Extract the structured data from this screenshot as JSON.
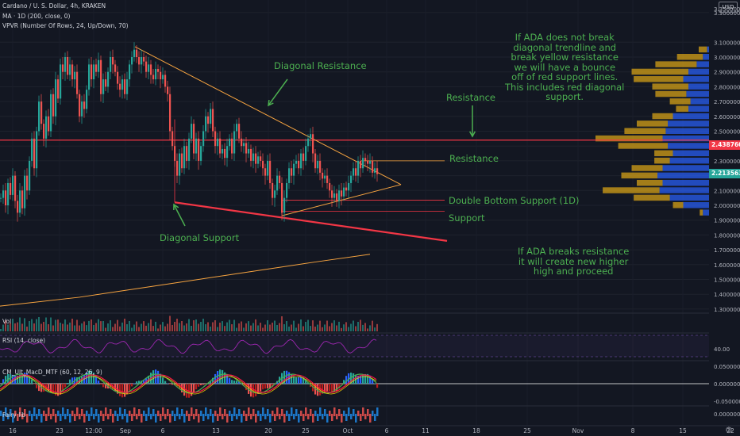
{
  "header": {
    "line1": "Cardano / U. S. Dollar, 4h, KRAKEN",
    "line2": "MA · 1D (200, close, 0)",
    "line3": "VPVR (Number Of Rows, 24, Up/Down, 70)",
    "currency": "USD"
  },
  "panes": {
    "vol_label": "Vol",
    "rsi_label": "RSI (14, close)",
    "rsi_value": "40.00",
    "macd_label": "CM_Ult_MacD_MTF (60, 12, 26, 9)",
    "pane4_label": "Fairy lib"
  },
  "annotations": {
    "diag_resistance": "Diagonal Resistance",
    "diag_support": "Diagonal Support",
    "resistance_top": "Resistance",
    "resistance": "Resistance",
    "double_bottom": "Double Bottom Support (1D)",
    "support": "Support",
    "note1": [
      "If ADA does not break",
      "diagonal trendline and",
      "break yellow resistance",
      "we will have a bounce",
      "off of red support lines.",
      "This includes red diagonal",
      "support."
    ],
    "note2": [
      "If ADA breaks resistance",
      "it will create new higher",
      "high and proceed"
    ]
  },
  "colors": {
    "background": "#131722",
    "bull": "#26a69a",
    "bear": "#ef5350",
    "red_line": "#f23645",
    "orange_line": "#f7a440",
    "annotation": "#4caf50",
    "vpvr_up": "#2962ff",
    "vpvr_down": "#d4a017"
  },
  "chart_data": {
    "type": "candlestick",
    "symbol": "ADA/USD",
    "timeframe": "4h",
    "ylim": [
      1.2,
      3.4
    ],
    "price_axis": [
      "3.350000",
      "3.300000",
      "3.100000",
      "3.000000",
      "2.900000",
      "2.800000",
      "2.700000",
      "2.600000",
      "2.500000",
      "2.400000",
      "2.300000",
      "2.200000",
      "2.100000",
      "2.000000",
      "1.900000",
      "1.800000",
      "1.700000",
      "1.600000",
      "1.500000",
      "1.400000",
      "1.300000"
    ],
    "last_price": "2.213563",
    "resistance_level": "2.438760",
    "x_ticks": [
      "16",
      "23",
      "12:00",
      "Sep",
      "6",
      "13",
      "20",
      "25",
      "Oct",
      "6",
      "11",
      "18",
      "25",
      "Nov",
      "8",
      "15",
      "22"
    ],
    "rsi_axis": "40.00",
    "macd_axis": [
      "0.050000",
      "0.000000",
      "-0.050000"
    ],
    "pane4_axis": "0.000000",
    "close_path": [
      [
        0,
        2.05
      ],
      [
        3,
        2.1
      ],
      [
        6,
        2.0
      ],
      [
        9,
        2.15
      ],
      [
        12,
        2.07
      ],
      [
        15,
        2.2
      ],
      [
        18,
        2.03
      ],
      [
        21,
        1.95
      ],
      [
        24,
        2.1
      ],
      [
        27,
        1.98
      ],
      [
        30,
        2.2
      ],
      [
        33,
        2.1
      ],
      [
        36,
        2.3
      ],
      [
        39,
        2.45
      ],
      [
        42,
        2.25
      ],
      [
        45,
        2.5
      ],
      [
        48,
        2.7
      ],
      [
        51,
        2.55
      ],
      [
        54,
        2.45
      ],
      [
        57,
        2.6
      ],
      [
        60,
        2.5
      ],
      [
        63,
        2.75
      ],
      [
        66,
        2.6
      ],
      [
        69,
        2.85
      ],
      [
        72,
        2.72
      ],
      [
        75,
        2.95
      ],
      [
        78,
        2.9
      ],
      [
        81,
        3.0
      ],
      [
        84,
        2.88
      ],
      [
        87,
        2.95
      ],
      [
        90,
        2.85
      ],
      [
        93,
        2.9
      ],
      [
        96,
        2.75
      ],
      [
        99,
        2.6
      ],
      [
        102,
        2.7
      ],
      [
        105,
        2.65
      ],
      [
        108,
        2.78
      ],
      [
        111,
        2.95
      ],
      [
        114,
        2.85
      ],
      [
        117,
        2.95
      ],
      [
        120,
        2.9
      ],
      [
        123,
        2.98
      ],
      [
        126,
        2.75
      ],
      [
        129,
        2.85
      ],
      [
        132,
        2.8
      ],
      [
        135,
        2.9
      ],
      [
        138,
        3.0
      ],
      [
        141,
        2.95
      ],
      [
        144,
        2.9
      ],
      [
        147,
        2.82
      ],
      [
        150,
        2.78
      ],
      [
        153,
        2.85
      ],
      [
        156,
        2.75
      ],
      [
        159,
        2.85
      ],
      [
        162,
        2.95
      ],
      [
        165,
        3.0
      ],
      [
        168,
        3.05
      ],
      [
        171,
        3.0
      ],
      [
        174,
        2.95
      ],
      [
        177,
        3.0
      ],
      [
        180,
        2.97
      ],
      [
        183,
        2.9
      ],
      [
        186,
        2.95
      ],
      [
        189,
        2.88
      ],
      [
        192,
        2.85
      ],
      [
        195,
        2.92
      ],
      [
        198,
        2.9
      ],
      [
        201,
        2.85
      ],
      [
        204,
        2.88
      ],
      [
        207,
        2.8
      ],
      [
        210,
        2.75
      ],
      [
        213,
        2.5
      ],
      [
        216,
        2.4
      ],
      [
        219,
        2.3
      ],
      [
        222,
        2.2
      ],
      [
        225,
        2.35
      ],
      [
        228,
        2.25
      ],
      [
        231,
        2.4
      ],
      [
        234,
        2.3
      ],
      [
        237,
        2.45
      ],
      [
        240,
        2.55
      ],
      [
        243,
        2.35
      ],
      [
        246,
        2.45
      ],
      [
        249,
        2.3
      ],
      [
        252,
        2.4
      ],
      [
        255,
        2.5
      ],
      [
        258,
        2.6
      ],
      [
        261,
        2.55
      ],
      [
        264,
        2.65
      ],
      [
        267,
        2.5
      ],
      [
        270,
        2.4
      ],
      [
        273,
        2.45
      ],
      [
        276,
        2.35
      ],
      [
        279,
        2.38
      ],
      [
        282,
        2.32
      ],
      [
        285,
        2.4
      ],
      [
        288,
        2.45
      ],
      [
        291,
        2.35
      ],
      [
        294,
        2.5
      ],
      [
        297,
        2.55
      ],
      [
        300,
        2.45
      ],
      [
        303,
        2.4
      ],
      [
        306,
        2.42
      ],
      [
        309,
        2.35
      ],
      [
        312,
        2.38
      ],
      [
        315,
        2.3
      ],
      [
        318,
        2.35
      ],
      [
        321,
        2.28
      ],
      [
        324,
        2.33
      ],
      [
        327,
        2.3
      ],
      [
        330,
        2.25
      ],
      [
        333,
        2.2
      ],
      [
        336,
        2.3
      ],
      [
        339,
        2.15
      ],
      [
        342,
        2.05
      ],
      [
        345,
        2.1
      ],
      [
        348,
        2.2
      ],
      [
        351,
        2.15
      ],
      [
        354,
        1.95
      ],
      [
        357,
        2.05
      ],
      [
        360,
        2.15
      ],
      [
        363,
        2.25
      ],
      [
        366,
        2.2
      ],
      [
        369,
        2.28
      ],
      [
        372,
        2.3
      ],
      [
        375,
        2.25
      ],
      [
        378,
        2.35
      ],
      [
        381,
        2.3
      ],
      [
        384,
        2.4
      ],
      [
        387,
        2.45
      ],
      [
        390,
        2.48
      ],
      [
        393,
        2.35
      ],
      [
        396,
        2.25
      ],
      [
        399,
        2.3
      ],
      [
        402,
        2.22
      ],
      [
        405,
        2.18
      ],
      [
        408,
        2.2
      ],
      [
        411,
        2.15
      ],
      [
        414,
        2.1
      ],
      [
        417,
        2.05
      ],
      [
        420,
        2.08
      ],
      [
        423,
        2.03
      ],
      [
        426,
        2.1
      ],
      [
        429,
        2.06
      ],
      [
        432,
        2.12
      ],
      [
        435,
        2.1
      ],
      [
        438,
        2.15
      ],
      [
        441,
        2.2
      ],
      [
        444,
        2.25
      ],
      [
        447,
        2.2
      ],
      [
        450,
        2.3
      ],
      [
        453,
        2.25
      ],
      [
        456,
        2.32
      ],
      [
        459,
        2.3
      ],
      [
        462,
        2.28
      ],
      [
        465,
        2.3
      ],
      [
        468,
        2.22
      ],
      [
        471,
        2.25
      ],
      [
        474,
        2.21
      ]
    ],
    "ma200_1d": [
      [
        0,
        1.32
      ],
      [
        100,
        1.38
      ],
      [
        200,
        1.46
      ],
      [
        300,
        1.54
      ],
      [
        400,
        1.62
      ],
      [
        466,
        1.67
      ]
    ],
    "lines": {
      "diagonal_resistance": [
        [
          170,
          3.07
        ],
        [
          505,
          2.14
        ]
      ],
      "diagonal_support": [
        [
          220,
          2.02
        ],
        [
          563,
          1.76
        ]
      ],
      "support_diagonal": [
        [
          355,
          1.93
        ],
        [
          505,
          2.14
        ]
      ],
      "resistance": 2.44,
      "yellow_resistance": 2.3,
      "double_bottom": 2.035,
      "support": 1.96
    },
    "vpvr": [
      {
        "price": 3.05,
        "up": 0.02,
        "down": 0.08
      },
      {
        "price": 3.0,
        "up": 0.06,
        "down": 0.25
      },
      {
        "price": 2.95,
        "up": 0.12,
        "down": 0.4
      },
      {
        "price": 2.9,
        "up": 0.2,
        "down": 0.55
      },
      {
        "price": 2.85,
        "up": 0.25,
        "down": 0.48
      },
      {
        "price": 2.8,
        "up": 0.2,
        "down": 0.35
      },
      {
        "price": 2.75,
        "up": 0.22,
        "down": 0.3
      },
      {
        "price": 2.7,
        "up": 0.18,
        "down": 0.2
      },
      {
        "price": 2.65,
        "up": 0.2,
        "down": 0.12
      },
      {
        "price": 2.6,
        "up": 0.35,
        "down": 0.2
      },
      {
        "price": 2.55,
        "up": 0.4,
        "down": 0.3
      },
      {
        "price": 2.5,
        "up": 0.42,
        "down": 0.4
      },
      {
        "price": 2.45,
        "up": 0.45,
        "down": 0.65
      },
      {
        "price": 2.4,
        "up": 0.4,
        "down": 0.48
      },
      {
        "price": 2.35,
        "up": 0.35,
        "down": 0.18
      },
      {
        "price": 2.3,
        "up": 0.38,
        "down": 0.15
      },
      {
        "price": 2.25,
        "up": 0.45,
        "down": 0.3
      },
      {
        "price": 2.2,
        "up": 0.5,
        "down": 0.35
      },
      {
        "price": 2.15,
        "up": 0.45,
        "down": 0.25
      },
      {
        "price": 2.1,
        "up": 0.48,
        "down": 0.55
      },
      {
        "price": 2.05,
        "up": 0.38,
        "down": 0.35
      },
      {
        "price": 2.0,
        "up": 0.25,
        "down": 0.1
      },
      {
        "price": 1.95,
        "up": 0.06,
        "down": 0.03
      }
    ]
  }
}
